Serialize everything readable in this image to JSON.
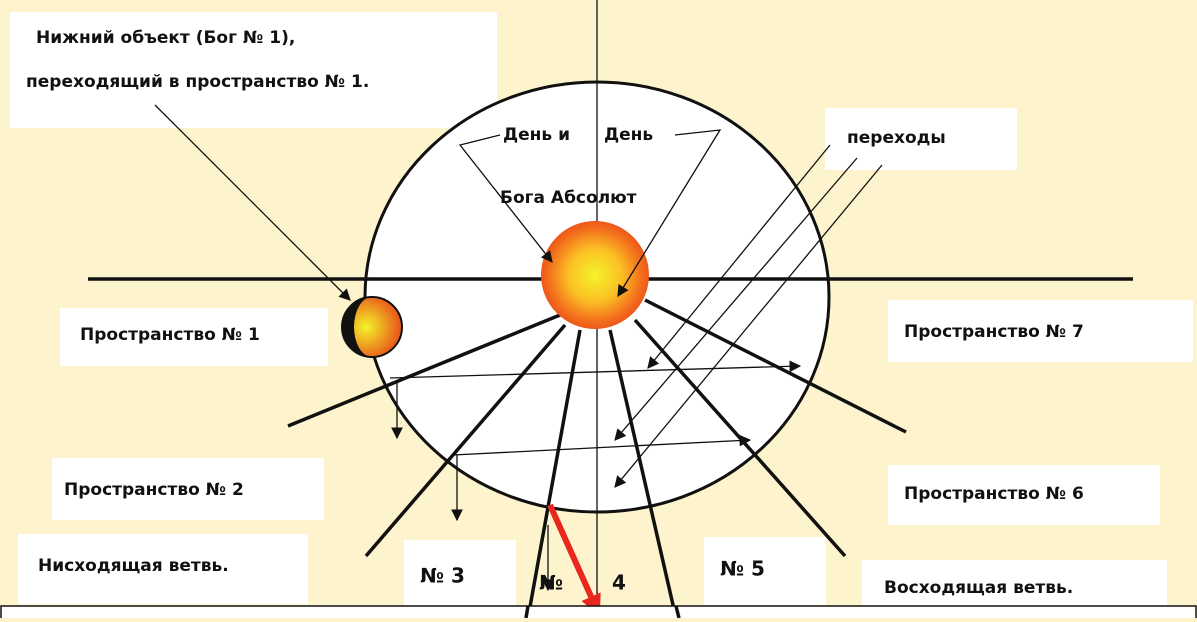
{
  "top_left_note": [
    "Нижний объект (Бог № 1),",
    "переходящий в пространство № 1."
  ],
  "center_labels": {
    "day_left": "День и",
    "day_right": "День",
    "absolute": "Бога Абсолют"
  },
  "transitions": "переходы",
  "spaces": [
    "Пространство № 1",
    "Пространство № 2",
    "№ 3",
    "№",
    "4",
    "№ 5",
    "Пространство № 6",
    "Пространство № 7"
  ],
  "branches": {
    "descending": "Нисходящая ветвь.",
    "ascending": "Восходящая ветвь."
  }
}
